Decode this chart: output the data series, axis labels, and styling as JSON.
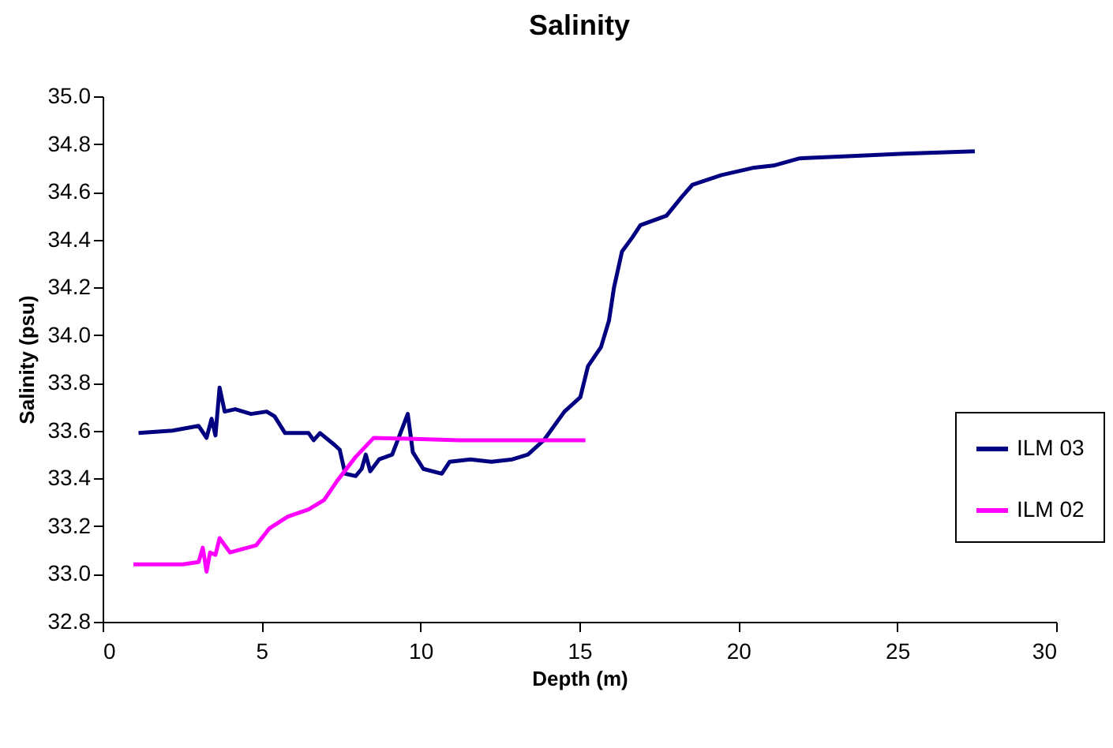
{
  "chart_data": {
    "type": "line",
    "title": "Salinity",
    "xlabel": "Depth (m)",
    "ylabel": "Salinity (psu)",
    "xlim": [
      0,
      30
    ],
    "xticks": [
      0,
      5,
      10,
      15,
      20,
      25,
      30
    ],
    "ylim": [
      32.8,
      35.0
    ],
    "yticks": [
      {
        "value": 32.8,
        "label": "32.8"
      },
      {
        "value": 33.0,
        "label": "33.0"
      },
      {
        "value": 33.2,
        "label": "33.2"
      },
      {
        "value": 33.4,
        "label": "33.4"
      },
      {
        "value": 33.6,
        "label": "33.6"
      },
      {
        "value": 33.8,
        "label": "33.8"
      },
      {
        "value": 34.0,
        "label": "34.0"
      },
      {
        "value": 34.2,
        "label": "34.2"
      },
      {
        "value": 34.4,
        "label": "34.4"
      },
      {
        "value": 34.6,
        "label": "34.6"
      },
      {
        "value": 34.8,
        "label": "34.8"
      },
      {
        "value": 35.0,
        "label": "35.0"
      }
    ],
    "grid": false,
    "legend": "right",
    "marker": "none",
    "line_style": "solid",
    "series": [
      {
        "name": "ILM 03",
        "color": "#000080",
        "x": [
          1.13,
          2.2,
          3.02,
          3.27,
          3.43,
          3.55,
          3.68,
          3.84,
          4.17,
          4.67,
          5.16,
          5.41,
          5.74,
          6.48,
          6.64,
          6.84,
          7.3,
          7.46,
          7.63,
          7.96,
          8.15,
          8.28,
          8.42,
          8.7,
          9.11,
          9.6,
          9.76,
          10.09,
          10.67,
          10.92,
          11.57,
          12.23,
          12.89,
          13.38,
          13.88,
          14.53,
          15.03,
          15.27,
          15.68,
          15.93,
          16.09,
          16.34,
          16.67,
          16.92,
          17.74,
          18.23,
          18.56,
          19.47,
          20.45,
          21.11,
          21.93,
          23.58,
          25.22,
          27.44
        ],
        "values": [
          33.59,
          33.6,
          33.62,
          33.57,
          33.65,
          33.58,
          33.78,
          33.68,
          33.69,
          33.67,
          33.68,
          33.66,
          33.59,
          33.59,
          33.56,
          33.59,
          33.54,
          33.52,
          33.42,
          33.41,
          33.44,
          33.5,
          33.43,
          33.48,
          33.5,
          33.67,
          33.51,
          33.44,
          33.42,
          33.47,
          33.48,
          33.47,
          33.48,
          33.5,
          33.56,
          33.68,
          33.74,
          33.87,
          33.95,
          34.06,
          34.2,
          34.35,
          34.41,
          34.46,
          34.5,
          34.58,
          34.63,
          34.67,
          34.7,
          34.71,
          34.74,
          34.75,
          34.76,
          34.77
        ]
      },
      {
        "name": "ILM 02",
        "color": "#ff00ff",
        "x": [
          0.97,
          2.53,
          3.02,
          3.15,
          3.27,
          3.38,
          3.55,
          3.68,
          4.01,
          4.83,
          5.24,
          5.82,
          6.48,
          6.97,
          7.38,
          7.96,
          8.53,
          11.24,
          15.19
        ],
        "values": [
          33.04,
          33.04,
          33.05,
          33.11,
          33.01,
          33.09,
          33.08,
          33.15,
          33.09,
          33.12,
          33.19,
          33.24,
          33.27,
          33.31,
          33.39,
          33.49,
          33.57,
          33.56,
          33.56
        ]
      }
    ]
  }
}
